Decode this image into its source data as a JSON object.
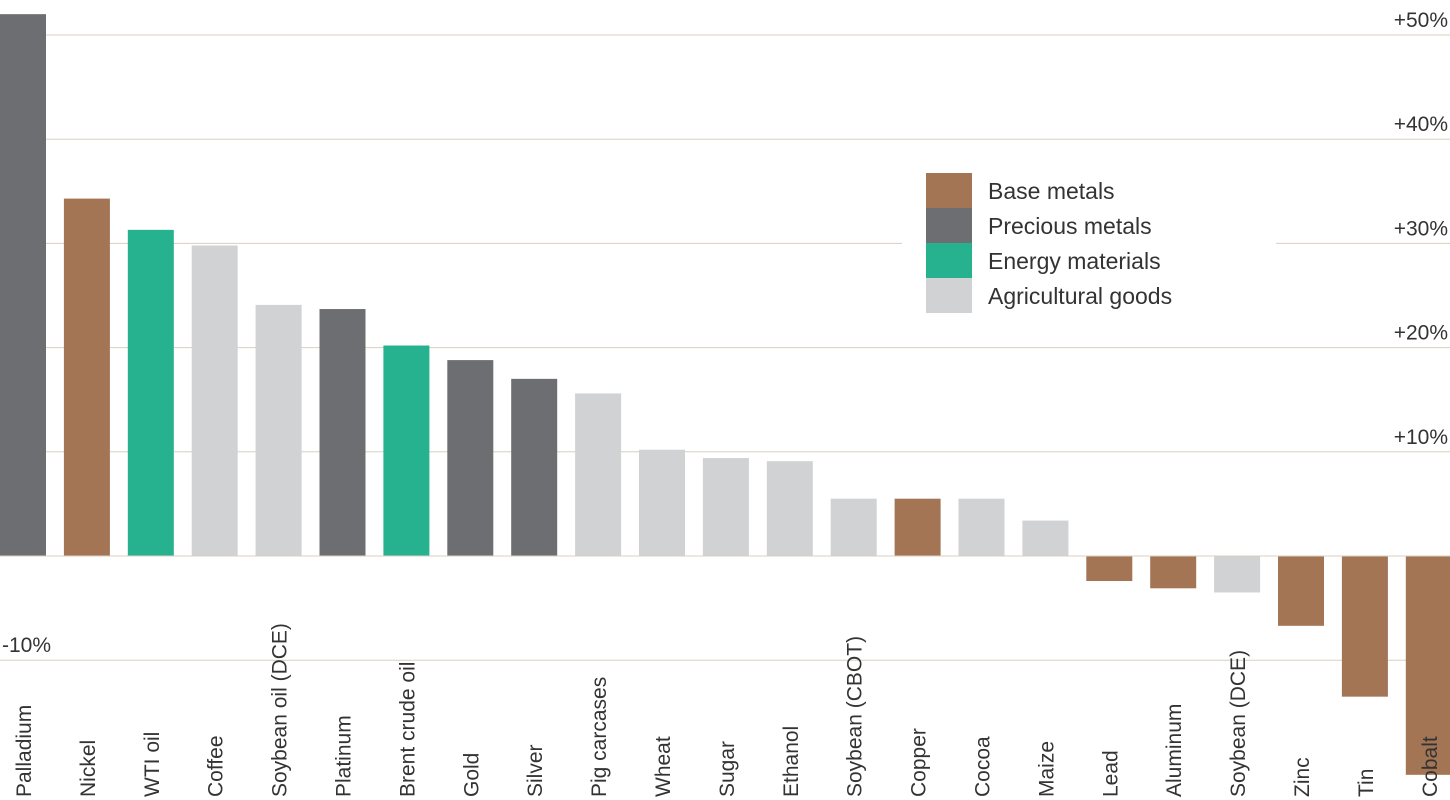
{
  "chart_data": {
    "type": "bar",
    "title": "",
    "xlabel": "",
    "ylabel": "",
    "ylim": [
      -21,
      52
    ],
    "y_ticks": [
      -10,
      10,
      20,
      30,
      40,
      50
    ],
    "y_tick_labels": [
      "-10%",
      "+10%",
      "+20%",
      "+30%",
      "+40%",
      "+50%"
    ],
    "grid": true,
    "legend_position": "top-right",
    "legend": [
      {
        "name": "Base metals",
        "color": "#a47555"
      },
      {
        "name": "Precious metals",
        "color": "#6d6e71"
      },
      {
        "name": "Energy materials",
        "color": "#26b18f"
      },
      {
        "name": "Agricultural goods",
        "color": "#d1d2d4"
      }
    ],
    "categories": [
      "Palladium",
      "Nickel",
      "WTI oil",
      "Coffee",
      "Soybean oil (DCE)",
      "Platinum",
      "Brent crude oil",
      "Gold",
      "Silver",
      "Pig carcases",
      "Wheat",
      "Sugar",
      "Ethanol",
      "Soybean (CBOT)",
      "Copper",
      "Cocoa",
      "Maize",
      "Lead",
      "Aluminum",
      "Soybean (DCE)",
      "Zinc",
      "Tin",
      "Cobalt"
    ],
    "values": [
      52,
      34.3,
      31.3,
      29.8,
      24.1,
      23.7,
      20.2,
      18.8,
      17.0,
      15.6,
      10.2,
      9.4,
      9.1,
      5.5,
      5.5,
      5.5,
      3.4,
      -2.4,
      -3.1,
      -3.5,
      -6.7,
      -13.5,
      -21
    ],
    "groups": [
      "Precious metals",
      "Base metals",
      "Energy materials",
      "Agricultural goods",
      "Agricultural goods",
      "Precious metals",
      "Energy materials",
      "Precious metals",
      "Precious metals",
      "Agricultural goods",
      "Agricultural goods",
      "Agricultural goods",
      "Agricultural goods",
      "Agricultural goods",
      "Base metals",
      "Agricultural goods",
      "Agricultural goods",
      "Base metals",
      "Base metals",
      "Agricultural goods",
      "Base metals",
      "Base metals",
      "Base metals"
    ]
  }
}
